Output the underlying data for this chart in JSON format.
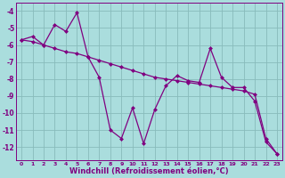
{
  "line1_x": [
    0,
    1,
    2,
    3,
    4,
    5,
    6,
    7,
    8,
    9,
    10,
    11,
    12,
    13,
    14,
    15,
    16,
    17,
    18,
    19,
    20,
    21,
    22,
    23
  ],
  "line1_y": [
    -5.7,
    -5.5,
    -6.0,
    -4.8,
    -5.2,
    -4.1,
    -6.7,
    -7.9,
    -11.0,
    -11.5,
    -9.7,
    -11.8,
    -9.8,
    -8.4,
    -7.8,
    -8.1,
    -8.2,
    -6.2,
    -7.9,
    -8.5,
    -8.5,
    -9.3,
    -11.7,
    -12.4
  ],
  "line2_x": [
    0,
    1,
    2,
    3,
    4,
    5,
    6,
    7,
    8,
    9,
    10,
    11,
    12,
    13,
    14,
    15,
    16,
    17,
    18,
    19,
    20,
    21,
    22,
    23
  ],
  "line2_y": [
    -5.7,
    -5.8,
    -6.0,
    -6.2,
    -6.4,
    -6.5,
    -6.7,
    -6.9,
    -7.1,
    -7.3,
    -7.5,
    -7.7,
    -7.9,
    -8.0,
    -8.1,
    -8.2,
    -8.3,
    -8.4,
    -8.5,
    -8.6,
    -8.7,
    -8.9,
    -11.5,
    -12.4
  ],
  "line_color": "#800080",
  "bg_color": "#aadddd",
  "grid_color": "#88bbbb",
  "xlabel": "Windchill (Refroidissement éolien,°C)",
  "ylim": [
    -12.8,
    -3.5
  ],
  "xlim": [
    -0.5,
    23.5
  ],
  "yticks": [
    -4,
    -5,
    -6,
    -7,
    -8,
    -9,
    -10,
    -11,
    -12
  ],
  "xticks": [
    0,
    1,
    2,
    3,
    4,
    5,
    6,
    7,
    8,
    9,
    10,
    11,
    12,
    13,
    14,
    15,
    16,
    17,
    18,
    19,
    20,
    21,
    22,
    23
  ],
  "marker": "D",
  "markersize": 2.5,
  "linewidth": 0.9
}
